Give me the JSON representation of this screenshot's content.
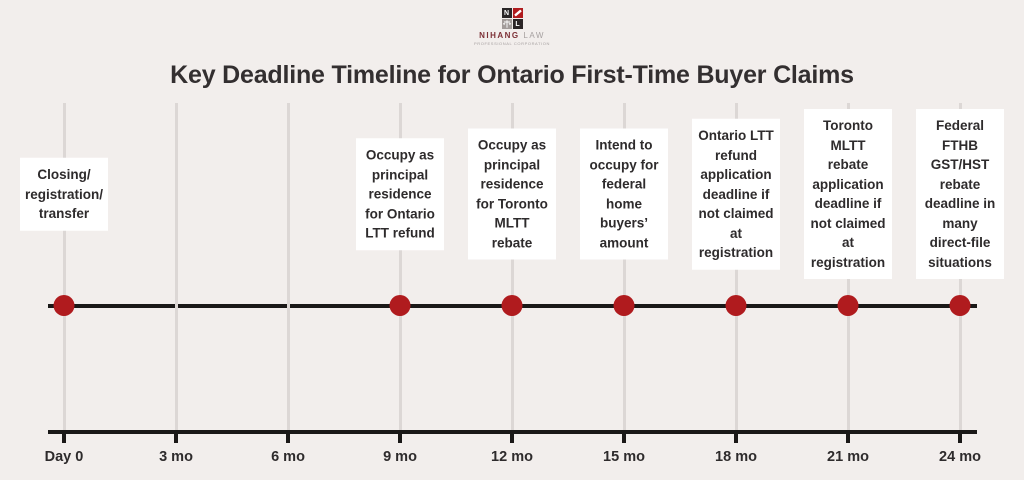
{
  "logo": {
    "grid": {
      "tl_letter": "N",
      "br_letter": "L"
    },
    "brand_primary": "NIHANG",
    "brand_secondary": " LAW",
    "subtitle": "PROFESSIONAL CORPORATION"
  },
  "title": "Key Deadline Timeline for Ontario First-Time Buyer Claims",
  "colors": {
    "background": "#f2eeec",
    "dot_red": "#b01b1e",
    "timeline_black": "#1a1817",
    "gridline_gray": "#dcd7d5",
    "text_dark": "#2e2b2c"
  },
  "timeline": {
    "ticks": [
      {
        "label": "Day 0"
      },
      {
        "label": "3 mo"
      },
      {
        "label": "6 mo"
      },
      {
        "label": "9 mo"
      },
      {
        "label": "12 mo"
      },
      {
        "label": "15 mo"
      },
      {
        "label": "18 mo"
      },
      {
        "label": "21 mo"
      },
      {
        "label": "24 mo"
      }
    ],
    "events": [
      {
        "tick": 0,
        "time": "Day 0",
        "lines": [
          "Closing/",
          "registration/",
          "transfer"
        ]
      },
      {
        "tick": 3,
        "time": "9 mo",
        "lines": [
          "Occupy as",
          "principal",
          "residence",
          "for Ontario",
          "LTT refund"
        ]
      },
      {
        "tick": 4,
        "time": "12 mo",
        "lines": [
          "Occupy as",
          "principal",
          "residence",
          "for Toronto",
          "MLTT",
          "rebate"
        ]
      },
      {
        "tick": 5,
        "time": "15 mo",
        "lines": [
          "Intend to",
          "occupy for",
          "federal",
          "home",
          "buyers’",
          "amount"
        ]
      },
      {
        "tick": 6,
        "time": "18 mo",
        "lines": [
          "Ontario LTT",
          "refund",
          "application",
          "deadline if",
          "not claimed",
          "at",
          "registration"
        ]
      },
      {
        "tick": 7,
        "time": "21 mo",
        "lines": [
          "Toronto",
          "MLTT",
          "rebate",
          "application",
          "deadline if",
          "not claimed",
          "at",
          "registration"
        ]
      },
      {
        "tick": 8,
        "time": "24 mo",
        "lines": [
          "Federal",
          "FTHB",
          "GST/HST",
          "rebate",
          "deadline in",
          "many",
          "direct-file",
          "situations"
        ]
      }
    ]
  }
}
